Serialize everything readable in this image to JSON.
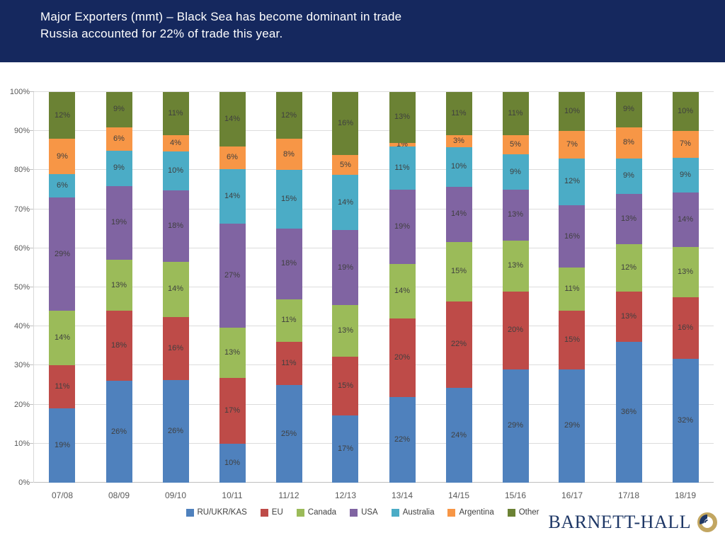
{
  "header": {
    "title_line1": "Major Exporters (mmt) – Black Sea has become dominant in trade",
    "title_line2": "Russia accounted for 22% of trade this year.",
    "background_color": "#15285E",
    "text_color": "#FFFFFF"
  },
  "chart_data": {
    "type": "bar",
    "stacked": true,
    "unit": "%",
    "title": "Major Exporters (mmt)",
    "xlabel": "",
    "ylabel": "",
    "ylim": [
      0,
      100
    ],
    "yticks": [
      "0%",
      "10%",
      "20%",
      "30%",
      "40%",
      "50%",
      "60%",
      "70%",
      "80%",
      "90%",
      "100%"
    ],
    "grid": true,
    "legend_position": "bottom",
    "categories": [
      "07/08",
      "08/09",
      "09/10",
      "10/11",
      "11/12",
      "12/13",
      "13/14",
      "14/15",
      "15/16",
      "16/17",
      "17/18",
      "18/19"
    ],
    "series": [
      {
        "name": "RU/UKR/KAS",
        "color": "#4F81BD",
        "values": [
          19,
          26,
          26,
          10,
          25,
          17,
          22,
          24,
          29,
          29,
          36,
          32
        ]
      },
      {
        "name": "EU",
        "color": "#BE4B48",
        "values": [
          11,
          18,
          16,
          17,
          11,
          15,
          20,
          22,
          20,
          15,
          13,
          16
        ]
      },
      {
        "name": "Canada",
        "color": "#9BBB59",
        "values": [
          14,
          13,
          14,
          13,
          11,
          13,
          14,
          15,
          13,
          11,
          12,
          13
        ]
      },
      {
        "name": "USA",
        "color": "#8064A2",
        "values": [
          29,
          19,
          18,
          27,
          18,
          19,
          19,
          14,
          13,
          16,
          13,
          14
        ]
      },
      {
        "name": "Australia",
        "color": "#4BACC6",
        "values": [
          6,
          9,
          10,
          14,
          15,
          14,
          11,
          10,
          9,
          12,
          9,
          9
        ]
      },
      {
        "name": "Argentina",
        "color": "#F79646",
        "values": [
          9,
          6,
          4,
          6,
          8,
          5,
          1,
          3,
          5,
          7,
          8,
          7
        ]
      },
      {
        "name": "Other",
        "color": "#6B8234",
        "values": [
          12,
          9,
          11,
          14,
          12,
          16,
          13,
          11,
          11,
          10,
          9,
          10
        ]
      }
    ],
    "grid_color": "#DCDCDC",
    "axis_color": "#BFBFBF",
    "tick_label_color": "#595959",
    "data_label_color": "#3F3F3F"
  },
  "footer": {
    "brand": "BARNETT-HALL",
    "brand_color": "#1E3766",
    "brand_mark_colors": {
      "gold": "#C2A661",
      "navy": "#1E3766"
    }
  }
}
